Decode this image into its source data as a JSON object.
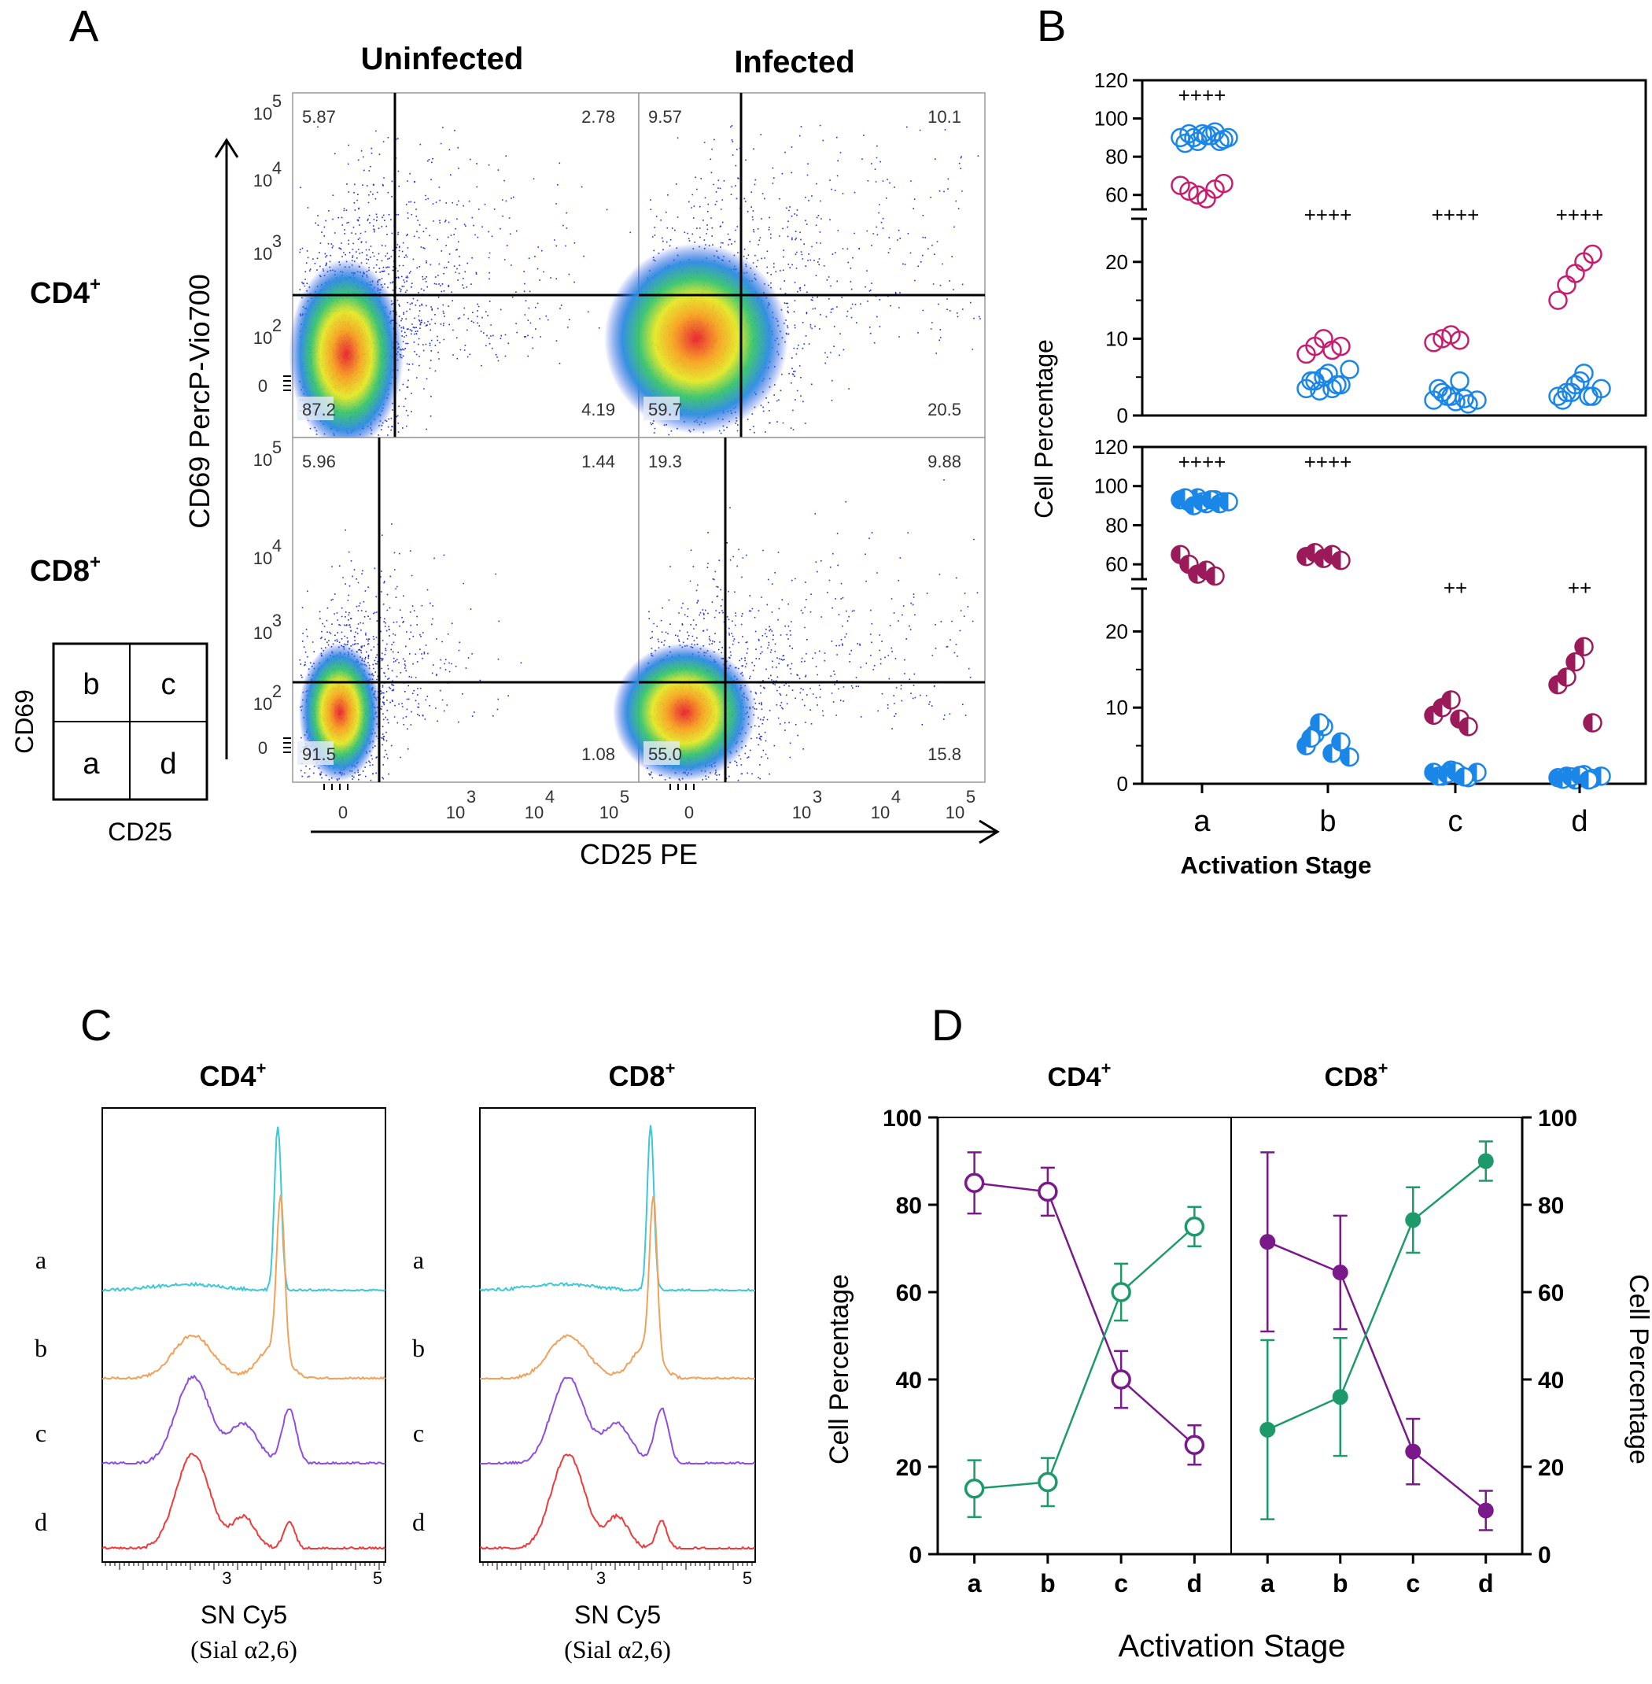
{
  "panel_labels": {
    "A": "A",
    "B": "B",
    "C": "C",
    "D": "D"
  },
  "chart_data": [
    {
      "id": "A",
      "type": "scatter",
      "subtype": "flow-cytometry-quadrant-plots",
      "column_titles": [
        "Uninfected",
        "Infected"
      ],
      "row_labels": [
        "CD4",
        "CD8"
      ],
      "row_label_sup": "+",
      "ylabel": "CD69 PercP-Vio700",
      "xlabel": "CD25 PE",
      "axis_ticks": {
        "zero": "0",
        "ten": "10",
        "exps": [
          "2",
          "3",
          "4",
          "5"
        ]
      },
      "legend_grid": {
        "cells": [
          "b",
          "c",
          "a",
          "d"
        ],
        "ylabel": "CD69",
        "xlabel": "CD25"
      },
      "quadrants": [
        {
          "row": "CD4",
          "col": "Uninfected",
          "ul": "5.87",
          "ur": "2.78",
          "ll": "87.2",
          "lr": "4.19"
        },
        {
          "row": "CD4",
          "col": "Infected",
          "ul": "9.57",
          "ur": "10.1",
          "ll": "59.7",
          "lr": "20.5"
        },
        {
          "row": "CD8",
          "col": "Uninfected",
          "ul": "5.96",
          "ur": "1.44",
          "ll": "91.5",
          "lr": "1.08"
        },
        {
          "row": "CD8",
          "col": "Infected",
          "ul": "19.3",
          "ur": "9.88",
          "ll": "55.0",
          "lr": "15.8"
        }
      ]
    },
    {
      "id": "B",
      "type": "scatter",
      "subtype": "dot-plot-broken-axis",
      "ylabel": "Cell Percentage",
      "xlabel": "Activation  Stage",
      "categories": [
        "a",
        "b",
        "c",
        "d"
      ],
      "yticks_upper": [
        "60",
        "80",
        "100",
        "120"
      ],
      "yticks_lower": [
        "0",
        "10",
        "20"
      ],
      "ylim_upper": [
        50,
        120
      ],
      "ylim_lower": [
        0,
        25
      ],
      "panels": [
        {
          "name": "CD4+",
          "markers": "open",
          "significance": [
            "++++",
            "++++",
            "++++",
            "++++"
          ],
          "series": [
            {
              "name": "Uninfected",
              "color": "#1a86e8",
              "values": [
                [
                  90,
                  92,
                  88,
                  91,
                  93,
                  89,
                  87,
                  90,
                  92,
                  91,
                  88,
                  90
                ],
                [
                  3.5,
                  4.5,
                  5,
                  3.5,
                  4,
                  6,
                  4.5,
                  3.2,
                  5.5,
                  4
                ],
                [
                  2,
                  3,
                  2.5,
                  4.5,
                  1.5,
                  2,
                  3.5,
                  2.5,
                  1.8,
                  2.2
                ],
                [
                  2.5,
                  3,
                  4,
                  5.5,
                  2.5,
                  3.5,
                  2,
                  3,
                  4.5,
                  2.5
                ]
              ]
            },
            {
              "name": "Infected",
              "color": "#c81d6e",
              "values": [
                [
                  65,
                  62,
                  60,
                  58,
                  63,
                  66
                ],
                [
                  8,
                  9,
                  10,
                  8.5,
                  9
                ],
                [
                  9.5,
                  10,
                  10.5,
                  9.8
                ],
                [
                  15,
                  17,
                  18.5,
                  20,
                  21
                ]
              ]
            }
          ]
        },
        {
          "name": "CD8+",
          "markers": "half-filled",
          "significance": [
            "++++",
            "++++",
            "++",
            "++"
          ],
          "series": [
            {
              "name": "Uninfected",
              "color": "#1a86e8",
              "values": [
                [
                  93,
                  92,
                  94,
                  91,
                  93,
                  92,
                  94,
                  90,
                  92,
                  93,
                  91,
                  92
                ],
                [
                  5,
                  6.5,
                  7.5,
                  4,
                  5.5,
                  3.5,
                  6,
                  8
                ],
                [
                  1.5,
                  1,
                  1.8,
                  1.2,
                  0.8,
                  1.5,
                  1,
                  1.3,
                  1.6,
                  0.9
                ],
                [
                  0.8,
                  1,
                  0.5,
                  1.2,
                  0.7,
                  1,
                  0.6,
                  0.9,
                  1.1,
                  0.5
                ]
              ]
            },
            {
              "name": "Infected",
              "color": "#9b1b5a",
              "values": [
                [
                  65,
                  60,
                  55,
                  57,
                  54
                ],
                [
                  64,
                  66,
                  63,
                  65,
                  62
                ],
                [
                  9,
                  10,
                  11,
                  8.5,
                  7.5
                ],
                [
                  13,
                  14,
                  16,
                  18,
                  8
                ]
              ]
            }
          ]
        }
      ]
    },
    {
      "id": "C",
      "type": "line",
      "subtype": "histogram-overlay",
      "panels": [
        {
          "title": "CD4",
          "sup": "+"
        },
        {
          "title": "CD8",
          "sup": "+"
        }
      ],
      "row_labels": [
        "a",
        "b",
        "c",
        "d"
      ],
      "series_colors": [
        "#3dc7d8",
        "#f2a15a",
        "#8f4de0",
        "#ee3a3a"
      ],
      "xticks": [
        "3",
        "5"
      ],
      "xlabel_line1": "SN Cy5",
      "xlabel_line2": "(Sial α2,6)"
    },
    {
      "id": "D",
      "type": "line",
      "subtype": "dual-panel-error-bars",
      "panels": [
        {
          "title": "CD4",
          "sup": "+",
          "markers": "open",
          "categories": [
            "a",
            "b",
            "c",
            "d"
          ],
          "series": [
            {
              "name": "purple",
              "color": "#7a1a8a",
              "values": [
                85,
                83,
                40,
                25
              ],
              "errors": [
                7,
                5.5,
                6.5,
                4.5
              ]
            },
            {
              "name": "green",
              "color": "#1d9a6c",
              "values": [
                15,
                16.5,
                60,
                75
              ],
              "errors": [
                6.5,
                5.5,
                6.5,
                4.5
              ]
            }
          ]
        },
        {
          "title": "CD8",
          "sup": "+",
          "markers": "filled",
          "categories": [
            "a",
            "b",
            "c",
            "d"
          ],
          "series": [
            {
              "name": "purple",
              "color": "#7a1a8a",
              "values": [
                71.5,
                64.5,
                23.5,
                10
              ],
              "errors": [
                20.5,
                13,
                7.5,
                4.5
              ]
            },
            {
              "name": "green",
              "color": "#1d9a6c",
              "values": [
                28.5,
                36,
                76.5,
                90
              ],
              "errors": [
                20.5,
                13.5,
                7.5,
                4.5
              ]
            }
          ]
        }
      ],
      "yticks": [
        "0",
        "20",
        "40",
        "60",
        "80",
        "100"
      ],
      "ylim": [
        0,
        100
      ],
      "ylabel_left": "Cell Percentage",
      "ylabel_right": "Cell Percentage",
      "xlabel": "Activation Stage"
    }
  ]
}
